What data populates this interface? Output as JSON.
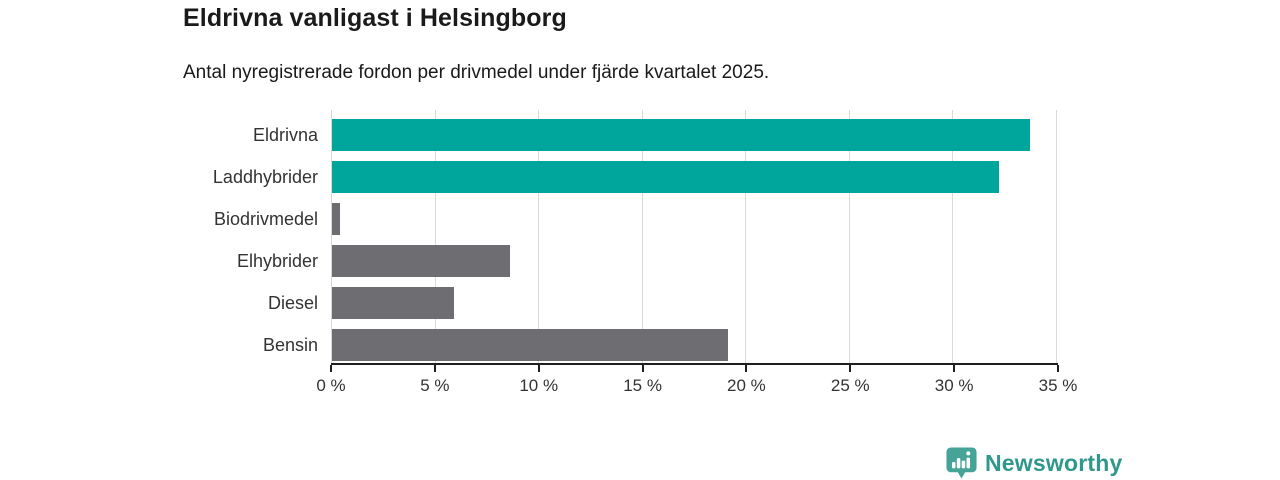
{
  "header": {
    "title": "Eldrivna vanligast i Helsingborg",
    "subtitle": "Antal nyregistrerade fordon per drivmedel under fjärde kvartalet 2025."
  },
  "chart_data": {
    "type": "bar",
    "orientation": "horizontal",
    "title": "Eldrivna vanligast i Helsingborg",
    "subtitle": "Antal nyregistrerade fordon per drivmedel under fjärde kvartalet 2025.",
    "categories": [
      "Eldrivna",
      "Laddhybrider",
      "Biodrivmedel",
      "Elhybrider",
      "Diesel",
      "Bensin"
    ],
    "values": [
      33.7,
      32.2,
      0.4,
      8.6,
      5.9,
      19.1
    ],
    "unit": "%",
    "bar_colors": [
      "#00a69b",
      "#00a69b",
      "#6d6d72",
      "#6d6d72",
      "#6d6d72",
      "#6d6d72"
    ],
    "accent_color": "#00a69b",
    "neutral_color": "#6d6d72",
    "xlim": [
      0,
      35
    ],
    "x_tick_labels": [
      "0 %",
      "5 %",
      "10 %",
      "15 %",
      "20 %",
      "25 %",
      "30 %",
      "35 %"
    ],
    "grid": "vertical",
    "gridline_color": "#d9d9d9",
    "legend": "none"
  },
  "branding": {
    "wordmark": "Newsworthy",
    "wordmark_color": "#2f988c",
    "icon": "newsworthy-pin-barchart-icon",
    "icon_color": "#45a497"
  }
}
